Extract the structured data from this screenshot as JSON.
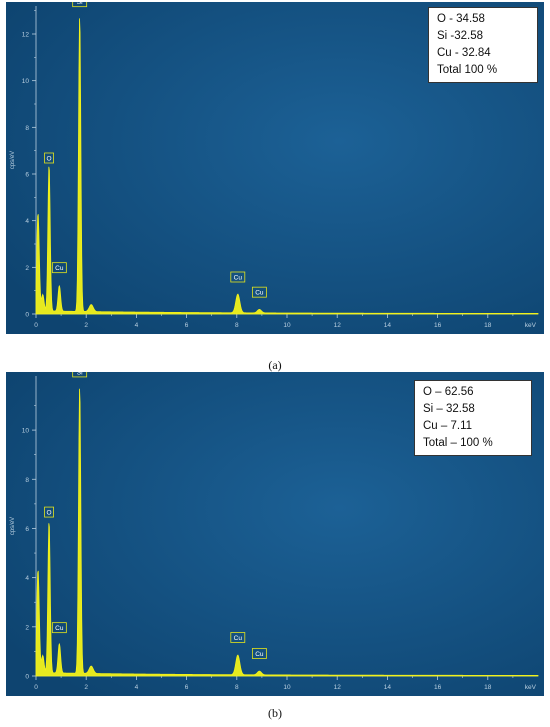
{
  "chart_data": [
    {
      "type": "line",
      "caption": "(a)",
      "xlabel": "keV",
      "ylabel": "cps/eV",
      "xlim": [
        0,
        20
      ],
      "ylim": [
        0,
        13.2
      ],
      "x_ticks": [
        "0",
        "2",
        "4",
        "6",
        "8",
        "10",
        "12",
        "14",
        "16",
        "18"
      ],
      "y_ticks": [
        "0",
        "2",
        "4",
        "6",
        "8",
        "10",
        "12"
      ],
      "legend": [
        "O - 34.58",
        "Si -32.58",
        "Cu - 32.84",
        "Total 100 %"
      ],
      "peak_labels": [
        {
          "label": "O",
          "x": 0.52,
          "y": 6.3
        },
        {
          "label": "Cu",
          "x": 0.93,
          "y": 1.6
        },
        {
          "label": "Si",
          "x": 1.74,
          "y": 13.0
        },
        {
          "label": "Cu",
          "x": 8.04,
          "y": 1.2
        },
        {
          "label": "Cu",
          "x": 8.9,
          "y": 0.55
        }
      ],
      "series": [
        {
          "color": "#f2f21a",
          "peaks": [
            {
              "x": 0.08,
              "y": 4.2,
              "w": 0.05
            },
            {
              "x": 0.27,
              "y": 0.7,
              "w": 0.05
            },
            {
              "x": 0.52,
              "y": 6.3,
              "w": 0.045
            },
            {
              "x": 0.93,
              "y": 1.1,
              "w": 0.05
            },
            {
              "x": 1.74,
              "y": 12.7,
              "w": 0.045
            },
            {
              "x": 2.2,
              "y": 0.3,
              "w": 0.08
            },
            {
              "x": 8.04,
              "y": 0.8,
              "w": 0.08
            },
            {
              "x": 8.9,
              "y": 0.15,
              "w": 0.08
            }
          ],
          "background": 0.12
        }
      ]
    },
    {
      "type": "line",
      "caption": "(b)",
      "xlabel": "keV",
      "ylabel": "cps/eV",
      "xlim": [
        0,
        20
      ],
      "ylim": [
        0,
        12.2
      ],
      "x_ticks": [
        "0",
        "2",
        "4",
        "6",
        "8",
        "10",
        "12",
        "14",
        "16",
        "18"
      ],
      "y_ticks": [
        "0",
        "2",
        "4",
        "6",
        "8",
        "10"
      ],
      "legend": [
        "O – 62.56",
        "Si – 32.58",
        "Cu – 7.11",
        "Total – 100 %"
      ],
      "peak_labels": [
        {
          "label": "O",
          "x": 0.52,
          "y": 6.3
        },
        {
          "label": "Cu",
          "x": 0.93,
          "y": 1.6
        },
        {
          "label": "Si",
          "x": 1.74,
          "y": 12.0
        },
        {
          "label": "Cu",
          "x": 8.04,
          "y": 1.2
        },
        {
          "label": "Cu",
          "x": 8.9,
          "y": 0.55
        }
      ],
      "series": [
        {
          "color": "#f2f21a",
          "peaks": [
            {
              "x": 0.08,
              "y": 4.2,
              "w": 0.05
            },
            {
              "x": 0.27,
              "y": 0.7,
              "w": 0.05
            },
            {
              "x": 0.52,
              "y": 6.2,
              "w": 0.045
            },
            {
              "x": 0.93,
              "y": 1.2,
              "w": 0.05
            },
            {
              "x": 1.74,
              "y": 11.7,
              "w": 0.045
            },
            {
              "x": 2.2,
              "y": 0.3,
              "w": 0.08
            },
            {
              "x": 8.04,
              "y": 0.8,
              "w": 0.08
            },
            {
              "x": 8.9,
              "y": 0.15,
              "w": 0.08
            }
          ],
          "background": 0.12
        }
      ]
    }
  ],
  "theme": {
    "plot_bg": "#0e4470",
    "axis": "#b9cfe0",
    "trace": "#f2f21a"
  }
}
